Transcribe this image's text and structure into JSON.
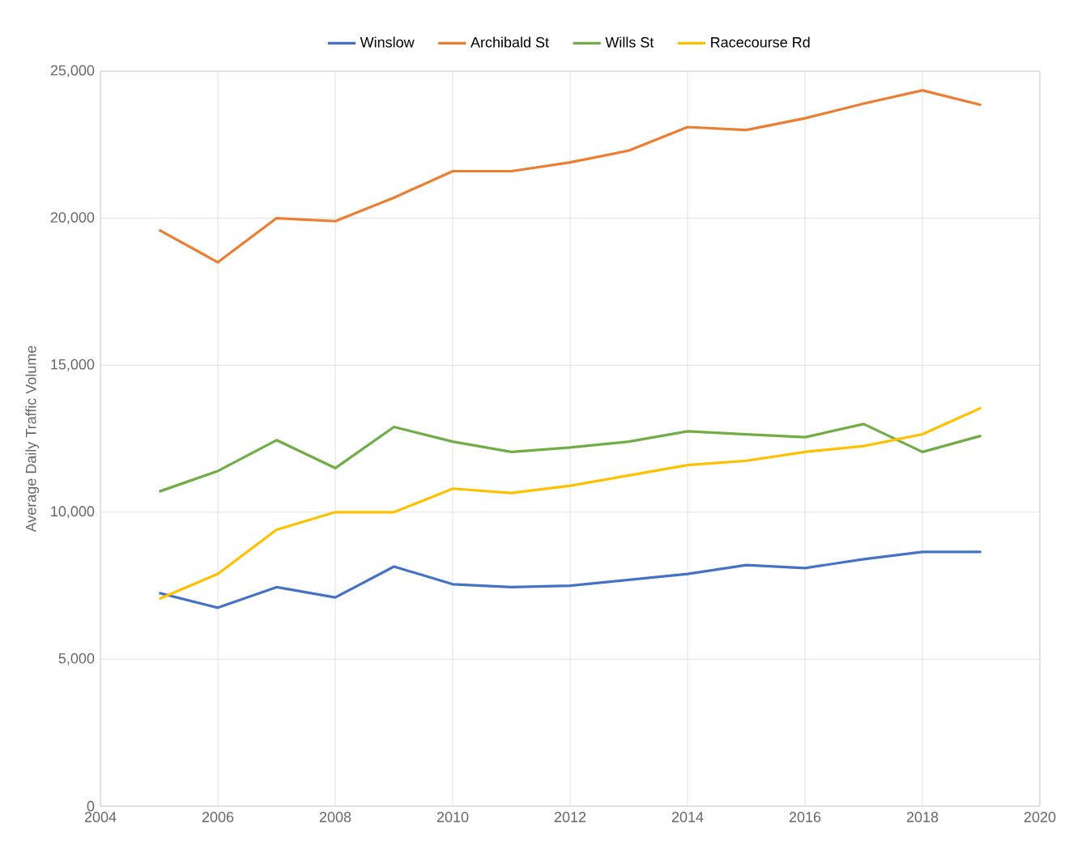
{
  "chart_data": {
    "type": "line",
    "ylabel": "Average Daily Traffic Volume",
    "x": [
      2005,
      2006,
      2007,
      2008,
      2009,
      2010,
      2011,
      2012,
      2013,
      2014,
      2015,
      2016,
      2017,
      2018,
      2019
    ],
    "series": [
      {
        "name": "Winslow",
        "color": "#4472c4",
        "values": [
          7250,
          6750,
          7450,
          7100,
          8150,
          7550,
          7450,
          7500,
          7700,
          7900,
          8200,
          8100,
          8400,
          8650,
          8650
        ]
      },
      {
        "name": "Archibald St",
        "color": "#ed7d31",
        "values": [
          19600,
          18500,
          20000,
          19900,
          20700,
          21600,
          21600,
          21900,
          22300,
          23100,
          23000,
          23400,
          23900,
          24350,
          23850
        ]
      },
      {
        "name": "Wills St",
        "color": "#70ad47",
        "values": [
          10700,
          11400,
          12450,
          11500,
          12900,
          12400,
          12050,
          12200,
          12400,
          12750,
          12650,
          12550,
          13000,
          12050,
          12600
        ]
      },
      {
        "name": "Racecourse Rd",
        "color": "#ffc000",
        "values": [
          7050,
          7900,
          9400,
          10000,
          10000,
          10800,
          10650,
          10900,
          11250,
          11600,
          11750,
          12050,
          12250,
          12650,
          13550
        ]
      }
    ],
    "xlim": [
      2004,
      2020
    ],
    "xticks": [
      2004,
      2006,
      2008,
      2010,
      2012,
      2014,
      2016,
      2018,
      2020
    ],
    "ylim": [
      0,
      25000
    ],
    "yticks": [
      {
        "value": 0,
        "label": "0"
      },
      {
        "value": 5000,
        "label": "5,000"
      },
      {
        "value": 10000,
        "label": "10,000"
      },
      {
        "value": 15000,
        "label": "15,000"
      },
      {
        "value": 20000,
        "label": "20,000"
      },
      {
        "value": 25000,
        "label": "25,000"
      }
    ],
    "grid": true,
    "legend": "top",
    "marker": "none",
    "line_style": "solid"
  }
}
